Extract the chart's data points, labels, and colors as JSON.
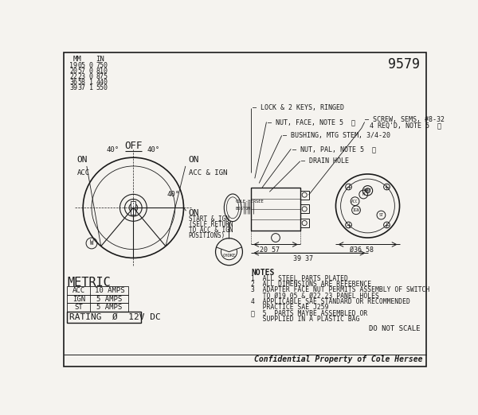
{
  "part_number": "9579",
  "bg_color": "#f5f3ef",
  "line_color": "#1a1a1a",
  "text_color": "#1a1a1a",
  "mm_in_rows": [
    [
      "19",
      "05",
      "0",
      "750"
    ],
    [
      "20",
      "57",
      "0",
      "810"
    ],
    [
      "22",
      "23",
      "0",
      "875"
    ],
    [
      "36",
      "58",
      "1",
      "440"
    ],
    [
      "39",
      "37",
      "1",
      "550"
    ]
  ],
  "metric_rows": [
    [
      "ACC",
      "10 AMPS"
    ],
    [
      "IGN",
      "5 AMPS"
    ],
    [
      "ST",
      "5 AMPS"
    ]
  ],
  "note_lines": [
    "NOTES",
    "1  ALL STEEL PARTS PLATED",
    "2  ALL DIMENSIONS ARE REFERENCE",
    "3  ADAPTER FACE NUT PERMITS ASSEMBLY OF SWITCH",
    "   TO Ø19.05 & Ø22.23 PANEL HOLES",
    "4  APPLICABLE SAE STANDARD OR RECOMMENDED",
    "   PRACTICE SAE J259",
    "ⓨ  5  PARTS MAYBE ASSEMBLED OR",
    "   SUPPLIED IN A PLASTIC BAG"
  ],
  "confidential": "Confidential Property of Cole Hersee",
  "do_not_scale": "DO NOT SCALE"
}
